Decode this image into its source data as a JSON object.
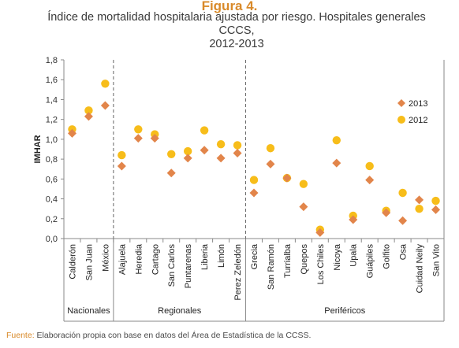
{
  "figure_label": "Figura 4.",
  "title_line1": "Índice de mortalidad hospitalaria ajustada por riesgo.  Hospitales generales CCCS,",
  "title_line2": "2012-2013",
  "source_key": "Fuente:",
  "source_text": " Elaboración propia con base en datos del Área de Estadística de la CCSS.",
  "colors": {
    "2013": "#e2854a",
    "2012": "#f7bd1a",
    "axis": "#8a8a8a",
    "divider": "#666666"
  },
  "chart_data": {
    "type": "scatter",
    "title": "Índice de mortalidad hospitalaria ajustada por riesgo.  Hospitales generales CCCS, 2012-2013",
    "ylabel": "IMHAR",
    "ylim": [
      0,
      1.8
    ],
    "yticks": [
      "0,0",
      "0,2",
      "0,4",
      "0,6",
      "0,8",
      "1,0",
      "1,2",
      "1,4",
      "1,6",
      "1,8"
    ],
    "grid": false,
    "legend_position": "right",
    "categories": [
      "Calderón",
      "San Juan",
      "México",
      "Alajuela",
      "Heredia",
      "Cartago",
      "San Carlos",
      "Puntarenas",
      "Liberia",
      "Limón",
      "Perez Zeledón",
      "Grecia",
      "San Ramón",
      "Turrialba",
      "Quepos",
      "Los Chiles",
      "Nicoya",
      "Upala",
      "Guápiles",
      "Golfito",
      "Osa",
      "Cuidad Neily",
      "San Vito"
    ],
    "groups": [
      {
        "name": "Nacionales",
        "count": 3
      },
      {
        "name": "Regionales",
        "count": 8
      },
      {
        "name": "Periféricos",
        "count": 12
      }
    ],
    "series": [
      {
        "name": "2013",
        "marker": "diamond",
        "values": [
          1.06,
          1.23,
          1.34,
          0.73,
          1.01,
          1.01,
          0.66,
          0.81,
          0.89,
          0.81,
          0.86,
          0.46,
          0.75,
          0.61,
          0.32,
          0.06,
          0.76,
          0.19,
          0.59,
          0.26,
          0.18,
          0.39,
          0.29
        ]
      },
      {
        "name": "2012",
        "marker": "circle",
        "values": [
          1.1,
          1.29,
          1.56,
          0.84,
          1.1,
          1.05,
          0.85,
          0.88,
          1.09,
          0.95,
          0.94,
          0.59,
          0.91,
          0.61,
          0.55,
          0.09,
          0.99,
          0.23,
          0.73,
          0.28,
          0.46,
          0.3,
          0.38
        ]
      }
    ]
  }
}
